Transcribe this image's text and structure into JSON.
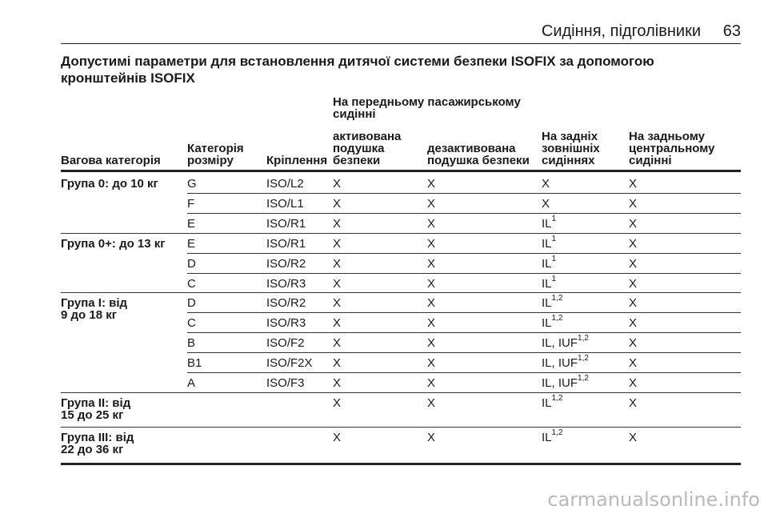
{
  "header": {
    "title": "Сидіння, підголівники",
    "page": "63"
  },
  "doc_title": "Допустимі параметри для встановлення дитячої системи безпеки ISOFIX за допомогою кронштейнів ISOFIX",
  "table": {
    "group_header": [
      "На передньому пасажирському",
      "сидінні"
    ],
    "columns": {
      "weight": [
        "Вагова категорія"
      ],
      "size": [
        "Категорія",
        "розміру"
      ],
      "fixture": [
        "Кріплення"
      ],
      "active": [
        "активована",
        "подушка",
        "безпеки"
      ],
      "deactive": [
        "дезактивована",
        "подушка безпеки"
      ],
      "rear_outer": [
        "На задніх",
        "зовнішніх",
        "сидіннях"
      ],
      "rear_center": [
        "На задньому",
        "центральному",
        "сидінні"
      ]
    },
    "groups": [
      {
        "label": [
          "Група 0: до 10 кг"
        ],
        "rows": [
          {
            "size": "G",
            "fixture": "ISO/L2",
            "active": "X",
            "deactive": "X",
            "rear_outer": "X",
            "rear_outer_sup": "",
            "rear_center": "X"
          },
          {
            "size": "F",
            "fixture": "ISO/L1",
            "active": "X",
            "deactive": "X",
            "rear_outer": "X",
            "rear_outer_sup": "",
            "rear_center": "X"
          },
          {
            "size": "E",
            "fixture": "ISO/R1",
            "active": "X",
            "deactive": "X",
            "rear_outer": "IL",
            "rear_outer_sup": "1",
            "rear_center": "X"
          }
        ]
      },
      {
        "label": [
          "Група 0+: до 13 кг"
        ],
        "rows": [
          {
            "size": "E",
            "fixture": "ISO/R1",
            "active": "X",
            "deactive": "X",
            "rear_outer": "IL",
            "rear_outer_sup": "1",
            "rear_center": "X"
          },
          {
            "size": "D",
            "fixture": "ISO/R2",
            "active": "X",
            "deactive": "X",
            "rear_outer": "IL",
            "rear_outer_sup": "1",
            "rear_center": "X"
          },
          {
            "size": "C",
            "fixture": "ISO/R3",
            "active": "X",
            "deactive": "X",
            "rear_outer": "IL",
            "rear_outer_sup": "1",
            "rear_center": "X"
          }
        ]
      },
      {
        "label": [
          "Група I: від",
          "9 до 18 кг"
        ],
        "rows": [
          {
            "size": "D",
            "fixture": "ISO/R2",
            "active": "X",
            "deactive": "X",
            "rear_outer": "IL",
            "rear_outer_sup": "1,2",
            "rear_center": "X"
          },
          {
            "size": "C",
            "fixture": "ISO/R3",
            "active": "X",
            "deactive": "X",
            "rear_outer": "IL",
            "rear_outer_sup": "1,2",
            "rear_center": "X"
          },
          {
            "size": "B",
            "fixture": "ISO/F2",
            "active": "X",
            "deactive": "X",
            "rear_outer": "IL, IUF",
            "rear_outer_sup": "1,2",
            "rear_center": "X"
          },
          {
            "size": "B1",
            "fixture": "ISO/F2X",
            "active": "X",
            "deactive": "X",
            "rear_outer": "IL, IUF",
            "rear_outer_sup": "1,2",
            "rear_center": "X"
          },
          {
            "size": "A",
            "fixture": "ISO/F3",
            "active": "X",
            "deactive": "X",
            "rear_outer": "IL, IUF",
            "rear_outer_sup": "1,2",
            "rear_center": "X"
          }
        ]
      },
      {
        "label": [
          "Група II: від",
          "15 до 25 кг"
        ],
        "rows": [
          {
            "size": "",
            "fixture": "",
            "active": "X",
            "deactive": "X",
            "rear_outer": "IL",
            "rear_outer_sup": "1,2",
            "rear_center": "X"
          }
        ]
      },
      {
        "label": [
          "Група III: від",
          "22 до 36 кг"
        ],
        "rows": [
          {
            "size": "",
            "fixture": "",
            "active": "X",
            "deactive": "X",
            "rear_outer": "IL",
            "rear_outer_sup": "1,2",
            "rear_center": "X"
          }
        ]
      }
    ]
  },
  "watermark": "carmanualsonline.info"
}
